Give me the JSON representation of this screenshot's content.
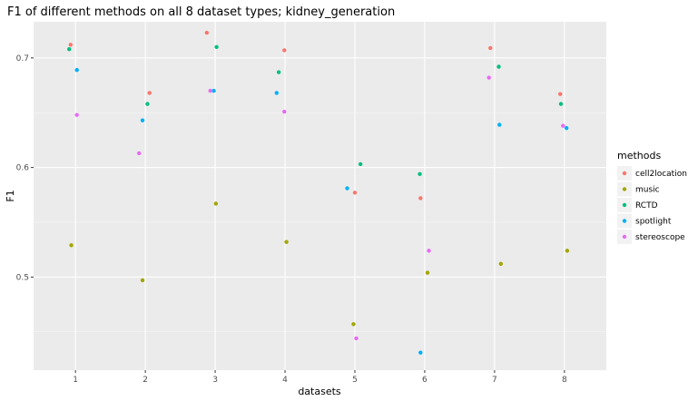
{
  "chart_data": {
    "type": "scatter",
    "title": "F1 of different methods on all 8 dataset types; kidney_generation",
    "xlabel": "datasets",
    "ylabel": "F1",
    "x_ticks": [
      "1",
      "2",
      "3",
      "4",
      "5",
      "6",
      "7",
      "8"
    ],
    "y_ticks": [
      "0.5",
      "0.6",
      "0.7"
    ],
    "y_tick_values": [
      0.5,
      0.6,
      0.7
    ],
    "xlim": [
      0.4,
      8.6
    ],
    "ylim": [
      0.415,
      0.733
    ],
    "grid": true,
    "legend": {
      "title": "methods",
      "position": "right"
    },
    "series": [
      {
        "name": "cell2location",
        "color": "#F8766D",
        "x": [
          0.93,
          2.06,
          2.88,
          3.99,
          5.0,
          5.94,
          6.94,
          7.94
        ],
        "y": [
          0.712,
          0.668,
          0.723,
          0.707,
          0.577,
          0.572,
          0.709,
          0.667
        ]
      },
      {
        "name": "music",
        "color": "#A3A500",
        "x": [
          0.94,
          1.96,
          3.01,
          4.02,
          4.98,
          6.04,
          7.09,
          8.04
        ],
        "y": [
          0.529,
          0.497,
          0.567,
          0.532,
          0.457,
          0.504,
          0.512,
          0.524
        ]
      },
      {
        "name": "RCTD",
        "color": "#00BF7D",
        "x": [
          0.91,
          2.03,
          3.02,
          3.91,
          5.08,
          5.93,
          7.06,
          7.95
        ],
        "y": [
          0.708,
          0.658,
          0.71,
          0.687,
          0.603,
          0.594,
          0.692,
          0.658
        ]
      },
      {
        "name": "spotlight",
        "color": "#00B0F6",
        "x": [
          1.02,
          1.96,
          2.98,
          3.88,
          4.89,
          5.94,
          7.07,
          8.03
        ],
        "y": [
          0.689,
          0.643,
          0.67,
          0.668,
          0.581,
          0.431,
          0.639,
          0.636
        ]
      },
      {
        "name": "stereoscope",
        "color": "#E76BF3",
        "x": [
          1.02,
          1.91,
          2.93,
          3.99,
          5.02,
          6.06,
          6.92,
          7.98
        ],
        "y": [
          0.648,
          0.613,
          0.67,
          0.651,
          0.444,
          0.524,
          0.682,
          0.638
        ]
      }
    ]
  }
}
